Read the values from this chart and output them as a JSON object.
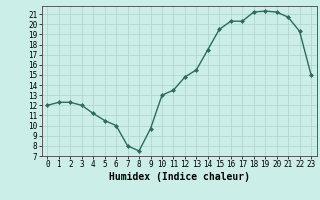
{
  "x": [
    0,
    1,
    2,
    3,
    4,
    5,
    6,
    7,
    8,
    9,
    10,
    11,
    12,
    13,
    14,
    15,
    16,
    17,
    18,
    19,
    20,
    21,
    22,
    23
  ],
  "y": [
    12,
    12.3,
    12.3,
    12,
    11.2,
    10.5,
    10,
    8,
    7.5,
    9.7,
    13,
    13.5,
    14.8,
    15.5,
    17.5,
    19.5,
    20.3,
    20.3,
    21.2,
    21.3,
    21.2,
    20.7,
    19.3,
    15
  ],
  "line_color": "#2d6b5e",
  "marker": "D",
  "marker_size": 2.0,
  "bg_color": "#cceee8",
  "grid_color": "#aad4ce",
  "xlabel": "Humidex (Indice chaleur)",
  "xlim": [
    -0.5,
    23.5
  ],
  "ylim": [
    7,
    21.8
  ],
  "yticks": [
    7,
    8,
    9,
    10,
    11,
    12,
    13,
    14,
    15,
    16,
    17,
    18,
    19,
    20,
    21
  ],
  "xticks": [
    0,
    1,
    2,
    3,
    4,
    5,
    6,
    7,
    8,
    9,
    10,
    11,
    12,
    13,
    14,
    15,
    16,
    17,
    18,
    19,
    20,
    21,
    22,
    23
  ],
  "tick_fontsize": 5.5,
  "xlabel_fontsize": 7,
  "linewidth": 1.0
}
